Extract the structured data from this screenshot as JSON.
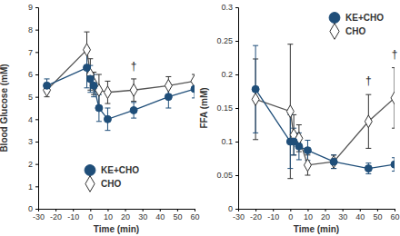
{
  "chart_data": [
    {
      "type": "line",
      "x_label": "Time (min)",
      "y_label": "Blood Glucose (mM)",
      "x": [
        -25,
        -2,
        0,
        2,
        5,
        10,
        25,
        45,
        60
      ],
      "series": [
        {
          "name": "KE+CHO",
          "color": "#1f4e79",
          "marker": "circle",
          "line_style": "solid",
          "values": [
            5.5,
            6.3,
            5.8,
            5.5,
            4.5,
            4.0,
            4.4,
            5.0,
            5.35
          ],
          "errors": [
            0.3,
            0.9,
            0.6,
            0.5,
            0.6,
            0.5,
            0.35,
            0.5,
            0.4
          ]
        },
        {
          "name": "CHO",
          "color": "#555555",
          "marker": "open-diamond",
          "line_style": "solid",
          "values": [
            5.3,
            7.1,
            6.0,
            5.6,
            5.3,
            5.2,
            5.3,
            5.5,
            5.7
          ],
          "errors": [
            0.3,
            0.8,
            0.7,
            0.5,
            0.7,
            0.5,
            0.5,
            0.4,
            0.3
          ]
        }
      ],
      "xlim": [
        -30,
        60
      ],
      "xticks": [
        -30,
        -20,
        -10,
        0,
        10,
        20,
        30,
        40,
        50,
        60
      ],
      "ylim": [
        0,
        9
      ],
      "yticks": [
        0,
        1,
        2,
        3,
        4,
        5,
        6,
        7,
        8,
        9
      ],
      "legend": "lower center",
      "annotations": [
        {
          "text": "†",
          "x": 25,
          "y": 6.2
        }
      ]
    },
    {
      "type": "line",
      "x_label": "Time (min)",
      "y_label": "FFA (mM)",
      "x": [
        -20,
        0,
        2,
        5,
        10,
        25,
        45,
        60
      ],
      "series": [
        {
          "name": "KE+CHO",
          "color": "#1f4e79",
          "marker": "circle",
          "line_style": "solid",
          "values": [
            0.178,
            0.1,
            0.1,
            0.093,
            0.087,
            0.07,
            0.06,
            0.066
          ],
          "errors": [
            0.065,
            0.04,
            0.02,
            0.02,
            0.015,
            0.01,
            0.008,
            0.01
          ]
        },
        {
          "name": "CHO",
          "color": "#555555",
          "marker": "open-diamond",
          "line_style": "solid",
          "values": [
            0.163,
            0.145,
            0.11,
            0.105,
            0.065,
            0.07,
            0.13,
            0.165
          ],
          "errors": [
            0.06,
            0.1,
            0.03,
            0.02,
            0.015,
            0.01,
            0.04,
            0.045
          ]
        }
      ],
      "xlim": [
        -30,
        60
      ],
      "xticks": [
        -30,
        -20,
        -10,
        0,
        10,
        20,
        30,
        40,
        50,
        60
      ],
      "ylim": [
        0,
        0.3
      ],
      "yticks": [
        0,
        0.05,
        0.1,
        0.15,
        0.2,
        0.25,
        0.3
      ],
      "legend": "upper right",
      "annotations": [
        {
          "text": "†",
          "x": 45,
          "y": 0.185
        },
        {
          "text": "†",
          "x": 60,
          "y": 0.225
        }
      ]
    }
  ]
}
